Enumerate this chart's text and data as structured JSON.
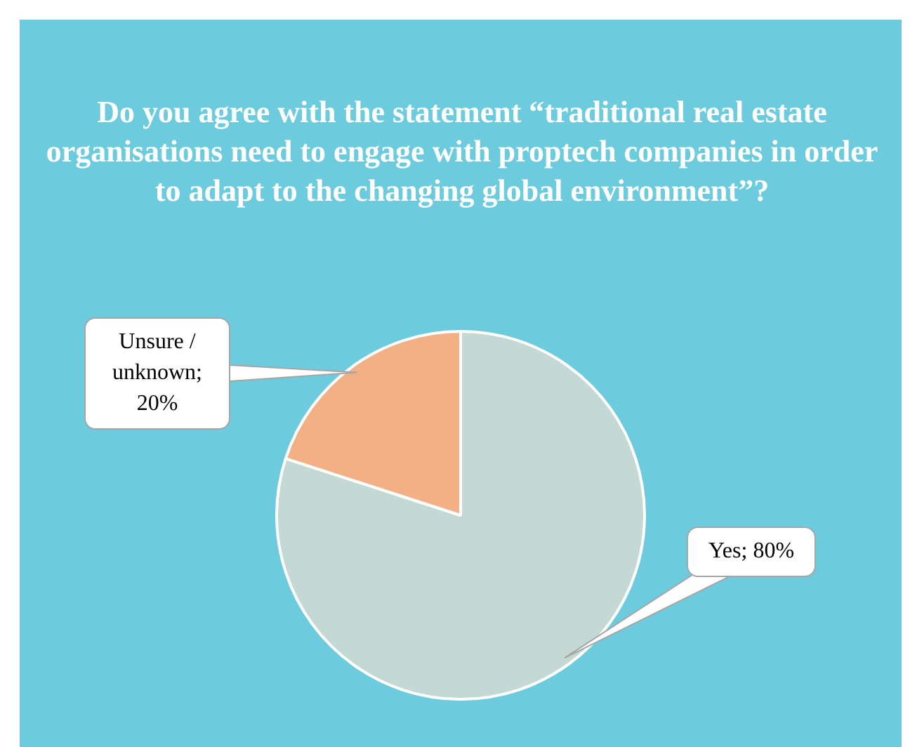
{
  "chart_data": {
    "type": "pie",
    "title": "Do you agree with the statement “traditional real estate organisations need to engage with proptech companies in order to adapt to the changing global environment”?",
    "categories": [
      "Yes",
      "Unsure / unknown"
    ],
    "values": [
      80,
      20
    ],
    "colors": [
      "#c4d9d4",
      "#f2b084"
    ],
    "value_labels": [
      "; 80%",
      "; 20%"
    ],
    "legend": false
  }
}
